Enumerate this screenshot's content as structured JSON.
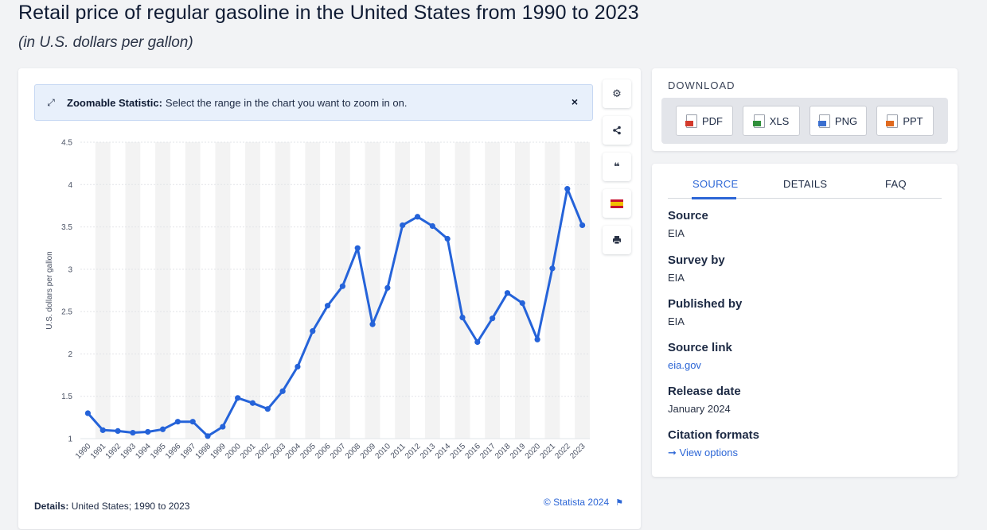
{
  "page": {
    "title": "Retail price of regular gasoline in the United States from 1990 to 2023",
    "subtitle": "(in U.S. dollars per gallon)"
  },
  "zoom_banner": {
    "icon": "expand-icon",
    "strong": "Zoomable Statistic:",
    "text": "Select the range in the chart you want to zoom in on.",
    "close": "×"
  },
  "toolbar": {
    "settings_icon": "⚙",
    "share_icon": "<",
    "cite_icon": "❝",
    "flag_icon": "flag",
    "print_icon": "⎙"
  },
  "details": {
    "label": "Details:",
    "text": "United States; 1990 to 2023"
  },
  "credit": "© Statista 2024",
  "download": {
    "title": "DOWNLOAD",
    "buttons": [
      "PDF",
      "XLS",
      "PNG",
      "PPT"
    ]
  },
  "tabs": [
    "SOURCE",
    "DETAILS",
    "FAQ"
  ],
  "info": {
    "source_label": "Source",
    "source_value": "EIA",
    "survey_label": "Survey by",
    "survey_value": "EIA",
    "published_label": "Published by",
    "published_value": "EIA",
    "link_label": "Source link",
    "link_value": "eia.gov",
    "release_label": "Release date",
    "release_value": "January 2024",
    "citation_label": "Citation formats",
    "citation_value": "➞ View options"
  },
  "colors": {
    "line": "#2563d9",
    "accent": "#2c66d6",
    "stripe": "#f3f3f3",
    "gridline": "#e2e4e8"
  },
  "chart_data": {
    "type": "line",
    "title": "Retail price of regular gasoline in the United States from 1990 to 2023",
    "ylabel": "U.S. dollars per gallon",
    "xlabel": "",
    "ylim": [
      1,
      4.5
    ],
    "yticks": [
      "1",
      "1.5",
      "2",
      "2.5",
      "3",
      "3.5",
      "4",
      "4.5"
    ],
    "grid": true,
    "categories": [
      "1990",
      "1991",
      "1992",
      "1993",
      "1994",
      "1995",
      "1996",
      "1997",
      "1998",
      "1999",
      "2000",
      "2001",
      "2002",
      "2003",
      "2004",
      "2005",
      "2006",
      "2007",
      "2008",
      "2009",
      "2010",
      "2011",
      "2012",
      "2013",
      "2014",
      "2015",
      "2016",
      "2017",
      "2018",
      "2019",
      "2020",
      "2021",
      "2022",
      "2023"
    ],
    "series": [
      {
        "values": [
          1.3,
          1.1,
          1.09,
          1.07,
          1.08,
          1.11,
          1.2,
          1.2,
          1.03,
          1.14,
          1.48,
          1.42,
          1.35,
          1.56,
          1.85,
          2.27,
          2.57,
          2.8,
          3.25,
          2.35,
          2.78,
          3.52,
          3.62,
          3.51,
          3.36,
          2.43,
          2.14,
          2.42,
          2.72,
          2.6,
          2.17,
          3.01,
          3.95,
          3.52
        ]
      }
    ]
  }
}
